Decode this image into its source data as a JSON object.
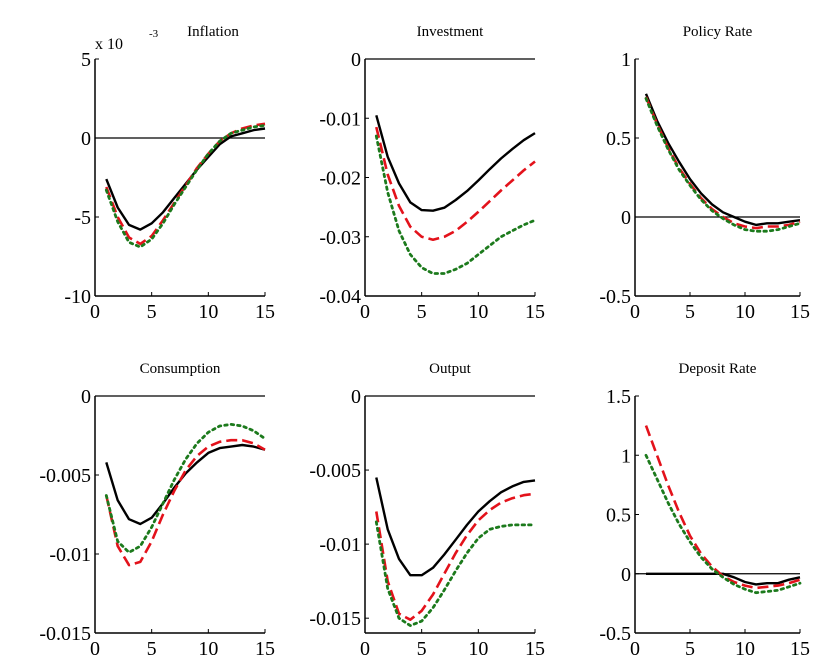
{
  "chart_data": [
    {
      "type": "line",
      "title": "Inflation",
      "exponent_label": {
        "prefix": "x 10",
        "exponent": "-3"
      },
      "xlim": [
        0,
        15
      ],
      "ylim": [
        -10,
        5
      ],
      "xticks": [
        0,
        5,
        10,
        15
      ],
      "yticks": [
        -10,
        -5,
        0,
        5
      ],
      "ytick_labels": [
        "-10",
        "-5",
        "0",
        "5"
      ],
      "x": [
        1,
        2,
        3,
        4,
        5,
        6,
        7,
        8,
        9,
        10,
        11,
        12,
        13,
        14,
        15
      ],
      "series": [
        {
          "color": "#000000",
          "dash": "solid",
          "values": [
            -2.6,
            -4.4,
            -5.5,
            -5.8,
            -5.4,
            -4.7,
            -3.8,
            -2.9,
            -2.0,
            -1.2,
            -0.4,
            0.1,
            0.3,
            0.5,
            0.6
          ]
        },
        {
          "color": "#e3121b",
          "dash": "dashed",
          "values": [
            -3.1,
            -5.0,
            -6.3,
            -6.7,
            -6.2,
            -5.2,
            -4.1,
            -3.0,
            -1.9,
            -1.0,
            -0.2,
            0.3,
            0.6,
            0.8,
            0.9
          ]
        },
        {
          "color": "#1c7a1c",
          "dash": "dotted",
          "values": [
            -3.3,
            -5.3,
            -6.6,
            -6.9,
            -6.4,
            -5.4,
            -4.2,
            -3.1,
            -2.0,
            -1.0,
            -0.2,
            0.3,
            0.5,
            0.7,
            0.8
          ]
        }
      ]
    },
    {
      "type": "line",
      "title": "Investment",
      "xlim": [
        0,
        15
      ],
      "ylim": [
        -0.04,
        0
      ],
      "xticks": [
        0,
        5,
        10,
        15
      ],
      "yticks": [
        -0.04,
        -0.03,
        -0.02,
        -0.01,
        0
      ],
      "ytick_labels": [
        "-0.04",
        "-0.03",
        "-0.02",
        "-0.01",
        "0"
      ],
      "x": [
        1,
        2,
        3,
        4,
        5,
        6,
        7,
        8,
        9,
        10,
        11,
        12,
        13,
        14,
        15
      ],
      "series": [
        {
          "color": "#000000",
          "dash": "solid",
          "values": [
            -0.0095,
            -0.0165,
            -0.021,
            -0.0242,
            -0.0255,
            -0.0256,
            -0.0251,
            -0.0238,
            -0.0223,
            -0.0205,
            -0.0186,
            -0.0168,
            -0.0152,
            -0.0137,
            -0.0125
          ]
        },
        {
          "color": "#e3121b",
          "dash": "dashed",
          "values": [
            -0.0115,
            -0.0195,
            -0.0248,
            -0.0283,
            -0.03,
            -0.0305,
            -0.03,
            -0.029,
            -0.0275,
            -0.0258,
            -0.024,
            -0.0222,
            -0.0205,
            -0.0188,
            -0.0173
          ]
        },
        {
          "color": "#1c7a1c",
          "dash": "dotted",
          "values": [
            -0.013,
            -0.0225,
            -0.029,
            -0.033,
            -0.0352,
            -0.0362,
            -0.0362,
            -0.0355,
            -0.0345,
            -0.033,
            -0.0315,
            -0.03,
            -0.029,
            -0.028,
            -0.0272
          ]
        }
      ]
    },
    {
      "type": "line",
      "title": "Policy Rate",
      "xlim": [
        0,
        15
      ],
      "ylim": [
        -0.5,
        1
      ],
      "xticks": [
        0,
        5,
        10,
        15
      ],
      "yticks": [
        -0.5,
        0,
        0.5,
        1
      ],
      "ytick_labels": [
        "-0.5",
        "0",
        "0.5",
        "1"
      ],
      "x": [
        1,
        2,
        3,
        4,
        5,
        6,
        7,
        8,
        9,
        10,
        11,
        12,
        13,
        14,
        15
      ],
      "series": [
        {
          "color": "#000000",
          "dash": "solid",
          "values": [
            0.78,
            0.61,
            0.47,
            0.35,
            0.24,
            0.15,
            0.08,
            0.03,
            0.0,
            -0.03,
            -0.05,
            -0.04,
            -0.04,
            -0.03,
            -0.02
          ]
        },
        {
          "color": "#e3121b",
          "dash": "dashed",
          "values": [
            0.76,
            0.59,
            0.44,
            0.31,
            0.21,
            0.12,
            0.05,
            0.0,
            -0.04,
            -0.06,
            -0.07,
            -0.06,
            -0.06,
            -0.05,
            -0.03
          ]
        },
        {
          "color": "#1c7a1c",
          "dash": "dotted",
          "values": [
            0.75,
            0.58,
            0.43,
            0.3,
            0.2,
            0.11,
            0.04,
            -0.01,
            -0.05,
            -0.08,
            -0.09,
            -0.09,
            -0.08,
            -0.06,
            -0.04
          ]
        }
      ]
    },
    {
      "type": "line",
      "title": "Consumption",
      "xlim": [
        0,
        15
      ],
      "ylim": [
        -0.015,
        0
      ],
      "xticks": [
        0,
        5,
        10,
        15
      ],
      "yticks": [
        -0.015,
        -0.01,
        -0.005,
        0
      ],
      "ytick_labels": [
        "-0.015",
        "-0.01",
        "-0.005",
        "0"
      ],
      "x": [
        1,
        2,
        3,
        4,
        5,
        6,
        7,
        8,
        9,
        10,
        11,
        12,
        13,
        14,
        15
      ],
      "series": [
        {
          "color": "#000000",
          "dash": "solid",
          "values": [
            -0.0042,
            -0.0066,
            -0.0078,
            -0.0081,
            -0.0077,
            -0.0068,
            -0.0058,
            -0.0049,
            -0.0042,
            -0.0036,
            -0.0033,
            -0.0032,
            -0.0031,
            -0.0032,
            -0.0034
          ]
        },
        {
          "color": "#e3121b",
          "dash": "dashed",
          "values": [
            -0.0063,
            -0.0095,
            -0.0107,
            -0.0105,
            -0.0092,
            -0.0075,
            -0.006,
            -0.0047,
            -0.0038,
            -0.0032,
            -0.0029,
            -0.0028,
            -0.0028,
            -0.003,
            -0.0034
          ]
        },
        {
          "color": "#1c7a1c",
          "dash": "dotted",
          "values": [
            -0.0063,
            -0.0092,
            -0.0099,
            -0.0095,
            -0.0083,
            -0.0068,
            -0.0053,
            -0.004,
            -0.003,
            -0.0023,
            -0.0019,
            -0.0018,
            -0.0019,
            -0.0022,
            -0.0027
          ]
        }
      ]
    },
    {
      "type": "line",
      "title": "Output",
      "xlim": [
        0,
        15
      ],
      "ylim": [
        -0.016,
        0
      ],
      "xticks": [
        0,
        5,
        10,
        15
      ],
      "yticks": [
        -0.015,
        -0.01,
        -0.005,
        0
      ],
      "ytick_labels": [
        "-0.015",
        "-0.01",
        "-0.005",
        "0"
      ],
      "x": [
        1,
        2,
        3,
        4,
        5,
        6,
        7,
        8,
        9,
        10,
        11,
        12,
        13,
        14,
        15
      ],
      "series": [
        {
          "color": "#000000",
          "dash": "solid",
          "values": [
            -0.0055,
            -0.009,
            -0.011,
            -0.0121,
            -0.0121,
            -0.0116,
            -0.0107,
            -0.0097,
            -0.0087,
            -0.0078,
            -0.0071,
            -0.0065,
            -0.0061,
            -0.0058,
            -0.0057
          ]
        },
        {
          "color": "#e3121b",
          "dash": "dashed",
          "values": [
            -0.0078,
            -0.0125,
            -0.0147,
            -0.0151,
            -0.0145,
            -0.0134,
            -0.012,
            -0.0106,
            -0.0094,
            -0.0084,
            -0.0077,
            -0.0072,
            -0.0069,
            -0.0067,
            -0.0066
          ]
        },
        {
          "color": "#1c7a1c",
          "dash": "dotted",
          "values": [
            -0.0085,
            -0.013,
            -0.015,
            -0.0155,
            -0.0152,
            -0.0143,
            -0.0131,
            -0.0118,
            -0.0106,
            -0.0096,
            -0.009,
            -0.0088,
            -0.0087,
            -0.0087,
            -0.0087
          ]
        }
      ]
    },
    {
      "type": "line",
      "title": "Deposit Rate",
      "xlim": [
        0,
        15
      ],
      "ylim": [
        -0.5,
        1.5
      ],
      "xticks": [
        0,
        5,
        10,
        15
      ],
      "yticks": [
        -0.5,
        0,
        0.5,
        1,
        1.5
      ],
      "ytick_labels": [
        "-0.5",
        "0",
        "0.5",
        "1",
        "1.5"
      ],
      "x": [
        1,
        2,
        3,
        4,
        5,
        6,
        7,
        8,
        9,
        10,
        11,
        12,
        13,
        14,
        15
      ],
      "series": [
        {
          "color": "#000000",
          "dash": "solid",
          "values": [
            0,
            0,
            0,
            0,
            0,
            0,
            0,
            0,
            -0.03,
            -0.07,
            -0.09,
            -0.08,
            -0.08,
            -0.05,
            -0.03
          ]
        },
        {
          "color": "#e3121b",
          "dash": "dashed",
          "values": [
            1.25,
            1.0,
            0.75,
            0.52,
            0.32,
            0.17,
            0.06,
            -0.02,
            -0.07,
            -0.1,
            -0.12,
            -0.11,
            -0.1,
            -0.08,
            -0.05
          ]
        },
        {
          "color": "#1c7a1c",
          "dash": "dotted",
          "values": [
            1.0,
            0.8,
            0.6,
            0.42,
            0.27,
            0.14,
            0.04,
            -0.03,
            -0.09,
            -0.13,
            -0.16,
            -0.15,
            -0.14,
            -0.11,
            -0.08
          ]
        }
      ]
    }
  ]
}
